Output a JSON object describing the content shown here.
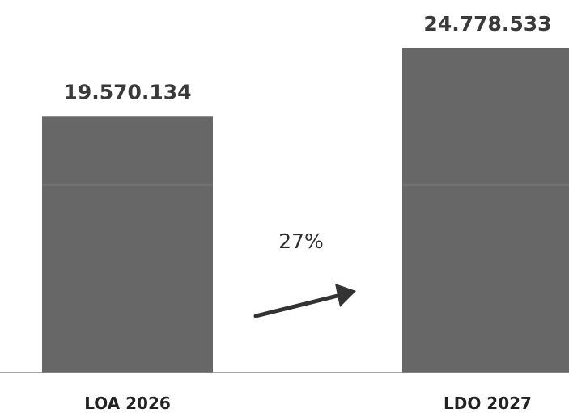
{
  "chart_data": {
    "type": "bar",
    "categories": [
      "LOA 2026",
      "LDO 2027"
    ],
    "values": [
      19570134,
      24778533
    ],
    "data_labels": [
      "19.570.134",
      "24.778.533"
    ],
    "annotation": "27%",
    "title": "",
    "xlabel": "",
    "ylabel": "",
    "ylim": [
      0,
      25000000
    ],
    "grid": false,
    "legend": "none",
    "bar_color": "#676767"
  }
}
